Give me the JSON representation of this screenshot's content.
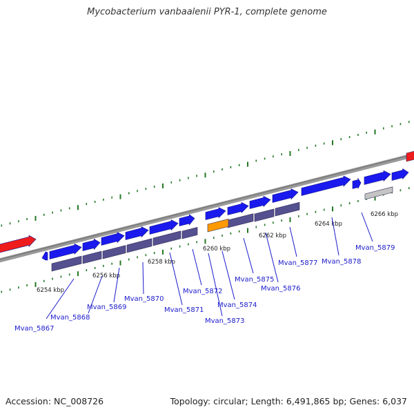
{
  "header": {
    "title": "Mycobacterium vanbaalenii PYR-1, complete genome"
  },
  "footer": {
    "accession": "Accession: NC_008726",
    "summary": "Topology: circular; Length: 6,491,865 bp; Genes: 6,037"
  },
  "ruler": {
    "unit": "kbp",
    "ticks": [
      {
        "pos": 6254,
        "label": "6254 kbp"
      },
      {
        "pos": 6256,
        "label": "6256 kbp"
      },
      {
        "pos": 6258,
        "label": "6258 kbp"
      },
      {
        "pos": 6260,
        "label": "6260 kbp"
      },
      {
        "pos": 6262,
        "label": "6262 kbp"
      },
      {
        "pos": 6264,
        "label": "6264 kbp"
      },
      {
        "pos": 6266,
        "label": "6266 kbp"
      }
    ]
  },
  "colors": {
    "gene": "#1a1aee",
    "cds": "#55508f",
    "orange": "#ff9900",
    "gray": "#c4c4c4",
    "red": "#ee1c1c",
    "backbone": "#888888",
    "tick": "#227722",
    "label": "#1a1acc"
  },
  "gene_labels": [
    "Mvan_5867",
    "Mvan_5868",
    "Mvan_5869",
    "Mvan_5870",
    "Mvan_5871",
    "Mvan_5872",
    "Mvan_5873",
    "Mvan_5874",
    "Mvan_5875",
    "Mvan_5876",
    "Mvan_5877",
    "Mvan_5878",
    "Mvan_5879"
  ]
}
